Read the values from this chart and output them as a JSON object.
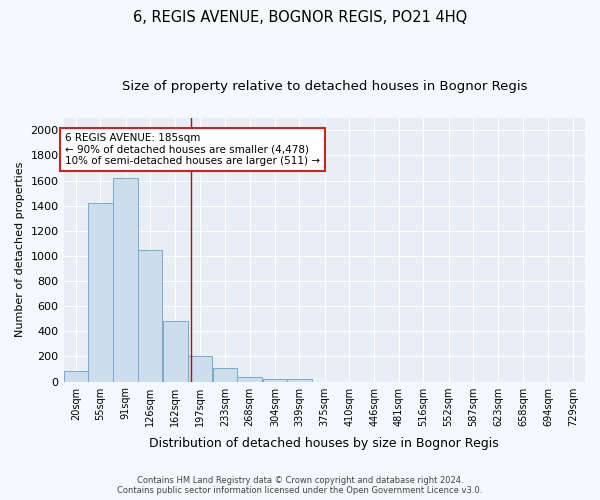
{
  "title": "6, REGIS AVENUE, BOGNOR REGIS, PO21 4HQ",
  "subtitle": "Size of property relative to detached houses in Bognor Regis",
  "xlabel": "Distribution of detached houses by size in Bognor Regis",
  "ylabel": "Number of detached properties",
  "categories": [
    "20sqm",
    "55sqm",
    "91sqm",
    "126sqm",
    "162sqm",
    "197sqm",
    "233sqm",
    "268sqm",
    "304sqm",
    "339sqm",
    "375sqm",
    "410sqm",
    "446sqm",
    "481sqm",
    "516sqm",
    "552sqm",
    "587sqm",
    "623sqm",
    "658sqm",
    "694sqm",
    "729sqm"
  ],
  "bin_centers": [
    20,
    55,
    91,
    126,
    162,
    197,
    233,
    268,
    304,
    339,
    375,
    410,
    446,
    481,
    516,
    552,
    587,
    623,
    658,
    694,
    729
  ],
  "values": [
    80,
    1420,
    1620,
    1050,
    480,
    200,
    105,
    40,
    20,
    20,
    0,
    0,
    0,
    0,
    0,
    0,
    0,
    0,
    0,
    0,
    0
  ],
  "bar_color": "#ccdded",
  "bar_edge_color": "#7aaac8",
  "red_line_x": 185,
  "annotation_text": "6 REGIS AVENUE: 185sqm\n← 90% of detached houses are smaller (4,478)\n10% of semi-detached houses are larger (511) →",
  "annotation_box_color": "#ffffff",
  "annotation_box_edge": "#cc2222",
  "ylim": [
    0,
    2100
  ],
  "yticks": [
    0,
    200,
    400,
    600,
    800,
    1000,
    1200,
    1400,
    1600,
    1800,
    2000
  ],
  "plot_bg_color": "#e8eef5",
  "fig_bg_color": "#f5f8fc",
  "footer_line1": "Contains HM Land Registry data © Crown copyright and database right 2024.",
  "footer_line2": "Contains public sector information licensed under the Open Government Licence v3.0.",
  "title_fontsize": 10.5,
  "subtitle_fontsize": 9.5,
  "red_line_color": "#aa1111"
}
